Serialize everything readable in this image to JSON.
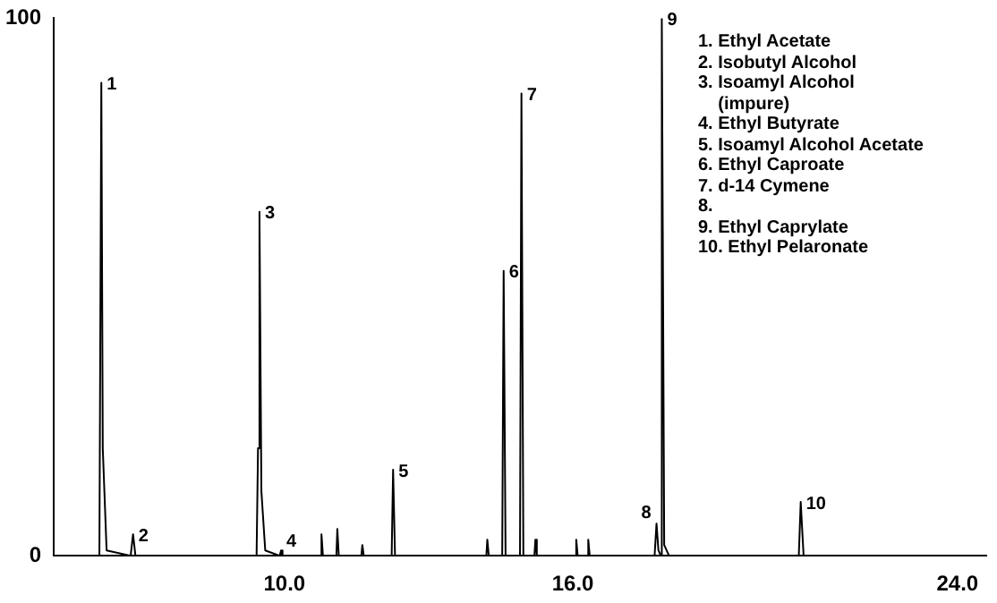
{
  "chart_data": {
    "type": "line",
    "x": [
      5.2,
      6.15,
      6.19,
      6.22,
      6.3,
      6.8,
      6.85,
      6.9,
      9.42,
      9.45,
      9.48,
      9.52,
      9.6,
      9.9,
      9.93,
      9.96,
      10.75,
      10.77,
      10.8,
      11.08,
      11.1,
      11.13,
      11.6,
      11.62,
      11.65,
      12.23,
      12.26,
      12.3,
      14.2,
      14.22,
      14.25,
      14.53,
      14.56,
      14.6,
      14.9,
      14.93,
      14.97,
      15.2,
      15.22,
      15.25,
      16.05,
      16.07,
      16.1,
      16.3,
      16.32,
      16.35,
      17.7,
      17.74,
      17.78,
      17.83,
      17.85,
      17.9,
      18.0,
      20.7,
      20.74,
      20.8,
      24.6
    ],
    "series": [
      {
        "color": "#000000",
        "values": [
          0,
          0,
          88,
          20,
          1,
          0,
          4,
          0,
          0,
          20,
          64,
          12,
          1,
          0,
          1,
          0,
          0,
          4,
          0,
          0,
          5,
          0,
          0,
          2,
          0,
          0,
          16,
          0,
          0,
          3,
          0,
          0,
          53,
          0,
          0,
          86,
          0,
          0,
          3,
          0,
          0,
          3,
          0,
          0,
          3,
          0,
          0,
          6,
          1,
          0,
          100,
          2,
          0,
          0,
          10,
          0,
          0
        ]
      }
    ],
    "xlim": [
      5.2,
      24.6
    ],
    "xticks": [
      {
        "value": 10,
        "label": "10.0"
      },
      {
        "value": 16,
        "label": "16.0"
      },
      {
        "value": 24,
        "label": "24.0"
      }
    ],
    "ylim": [
      0,
      100
    ],
    "yticks": [
      0,
      100
    ],
    "grid": false,
    "legend": false,
    "marker": "none",
    "line_style": "solid",
    "annotations": [
      {
        "text": "1",
        "x": 6.19,
        "y": 88
      },
      {
        "text": "2",
        "x": 6.85,
        "y": 4
      },
      {
        "text": "3",
        "x": 9.48,
        "y": 64
      },
      {
        "text": "4",
        "x": 9.93,
        "y": 1
      },
      {
        "text": "5",
        "x": 12.26,
        "y": 16
      },
      {
        "text": "6",
        "x": 14.56,
        "y": 53
      },
      {
        "text": "7",
        "x": 14.93,
        "y": 86
      },
      {
        "text": "8",
        "x": 17.74,
        "y": 6
      },
      {
        "text": "9",
        "x": 17.85,
        "y": 100
      },
      {
        "text": "10",
        "x": 20.74,
        "y": 10
      },
      "1. Ethyl Acetate",
      "2. Isobutyl Alcohol",
      "3. Isoamyl Alcohol\n(impure)",
      "4. Ethyl Butyrate",
      "5. Isoamyl Alcohol Acetate",
      "6. Ethyl Caproate",
      "7. d-14 Cymene",
      "8.",
      "9. Ethyl Caprylate",
      "10. Ethyl Pelaronate"
    ]
  }
}
